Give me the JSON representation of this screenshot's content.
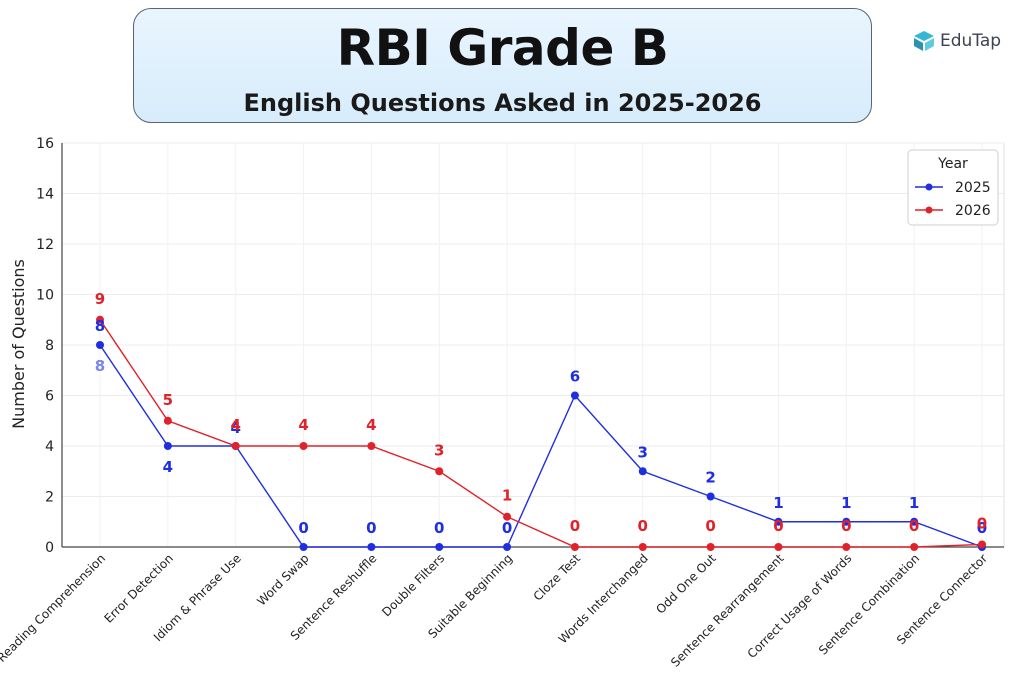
{
  "header": {
    "title": "RBI Grade B",
    "subtitle": "English Questions Asked in 2025-2026"
  },
  "brand": {
    "name": "EduTap",
    "icon": "edutap-logo-icon",
    "color": "#35b6d6"
  },
  "chart_data": {
    "type": "line",
    "title": "RBI Grade B",
    "subtitle": "English Questions Asked in 2025-2026",
    "xlabel": "",
    "ylabel": "Number of Questions",
    "ylim": [
      0,
      16
    ],
    "yticks": [
      0,
      2,
      4,
      6,
      8,
      10,
      12,
      14,
      16
    ],
    "grid": true,
    "legend": {
      "title": "Year",
      "position": "top-right"
    },
    "categories": [
      "Reading Comprehension",
      "Error Detection",
      "Idiom & Phrase Use",
      "Word Swap",
      "Sentence Reshuffle",
      "Double Filters",
      "Suitable Beginning",
      "Cloze Test",
      "Words Interchanged",
      "Odd One Out",
      "Sentence Rearrangement",
      "Correct Usage of Words",
      "Sentence Combination",
      "Sentence Connector"
    ],
    "series": [
      {
        "name": "2025",
        "color": "#1f2ee0",
        "values": [
          8,
          4,
          4,
          0,
          0,
          0,
          0,
          6,
          3,
          2,
          1,
          1,
          1,
          0
        ]
      },
      {
        "name": "2026",
        "color": "#e0222a",
        "values": [
          9,
          5,
          4,
          4,
          4,
          3,
          1.2,
          0,
          0,
          0,
          0,
          0,
          0,
          0.1
        ],
        "labels": [
          "9",
          "5",
          "4",
          "4",
          "4",
          "3",
          "1",
          "0",
          "0",
          "0",
          "0",
          "0",
          "0",
          "0"
        ]
      }
    ],
    "extra_labels": [
      {
        "text": "8",
        "category_index": 0,
        "color": "#7a86e6"
      }
    ]
  }
}
